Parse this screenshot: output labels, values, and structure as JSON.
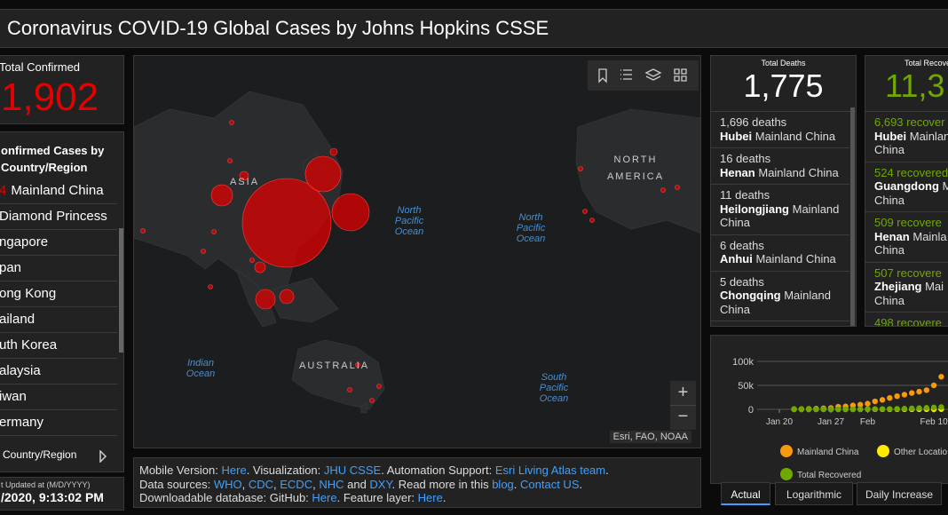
{
  "header": {
    "title": "Coronavirus COVID-19 Global Cases by Johns Hopkins CSSE"
  },
  "total_confirmed": {
    "label": "Total Confirmed",
    "value": "1,902"
  },
  "country_list": {
    "title_lines": [
      "onfirmed Cases by",
      "Country/Region"
    ],
    "items": [
      {
        "count": "4",
        "name": "Mainland China"
      },
      {
        "name": "Diamond Princess"
      },
      {
        "name": "ngapore"
      },
      {
        "name": "pan"
      },
      {
        "name": "ong Kong"
      },
      {
        "name": "ailand"
      },
      {
        "name": "uth Korea"
      },
      {
        "name": "alaysia"
      },
      {
        "name": "iwan"
      },
      {
        "name": "ermany"
      }
    ],
    "footer": "Country/Region"
  },
  "last_updated": {
    "label": "t Updated at (M/D/YYYY)",
    "value": "/2020, 9:13:02 PM"
  },
  "map": {
    "land_labels": [
      "ASIA",
      "NORTH AMERICA",
      "AUSTRALIA"
    ],
    "ocean_labels": [
      "North Pacific Ocean",
      "North Pacific Ocean",
      "Indian Ocean",
      "South Pacific Ocean"
    ],
    "zoom": [
      "+",
      "−"
    ],
    "attribution": "Esri, FAO, NOAA"
  },
  "info": {
    "lines": [
      [
        {
          "text": "Mobile Version: "
        },
        {
          "text": "Here",
          "link": true
        },
        {
          "text": ". Visualization: "
        },
        {
          "text": "JHU CSSE",
          "link": true
        },
        {
          "text": ". Automation Support: "
        },
        {
          "text": "Esri Living Atlas team",
          "link": true
        },
        {
          "text": "."
        }
      ],
      [
        {
          "text": "Data sources: "
        },
        {
          "text": "WHO",
          "link": true
        },
        {
          "text": ", "
        },
        {
          "text": "CDC",
          "link": true
        },
        {
          "text": ", "
        },
        {
          "text": "ECDC",
          "link": true
        },
        {
          "text": ", "
        },
        {
          "text": "NHC",
          "link": true
        },
        {
          "text": " and "
        },
        {
          "text": "DXY",
          "link": true
        },
        {
          "text": ". Read more in this "
        },
        {
          "text": "blog",
          "link": true
        },
        {
          "text": ". "
        },
        {
          "text": "Contact US",
          "link": true
        },
        {
          "text": "."
        }
      ],
      [
        {
          "text": "Downloadable database: GitHub: "
        },
        {
          "text": "Here",
          "link": true
        },
        {
          "text": ". Feature layer: "
        },
        {
          "text": "Here",
          "link": true
        },
        {
          "text": "."
        }
      ]
    ]
  },
  "deaths": {
    "title": "Total Deaths",
    "value": "1,775",
    "items": [
      {
        "count": "1,696 deaths",
        "place": "Hubei",
        "region": "Mainland China"
      },
      {
        "count": "16 deaths",
        "place": "Henan",
        "region": "Mainland China"
      },
      {
        "count": "11 deaths",
        "place": "Heilongjiang",
        "region": "Mainland China"
      },
      {
        "count": "6 deaths",
        "place": "Anhui",
        "region": "Mainland China"
      },
      {
        "count": "5 deaths",
        "place": "Chongqing",
        "region": "Mainland China"
      }
    ]
  },
  "recovered": {
    "title": "Total Recove",
    "value": "11,3",
    "items": [
      {
        "count": "6,693 recover",
        "place": "Hubei",
        "region": "Mainlan",
        "line3": "China"
      },
      {
        "count": "524 recovered",
        "place": "Guangdong",
        "region": "M",
        "line3": "China"
      },
      {
        "count": "509 recovere",
        "place": "Henan",
        "region": "Mainla",
        "line3": "China"
      },
      {
        "count": "507 recovere",
        "place": "Zhejiang",
        "region": "Mai",
        "line3": "China"
      },
      {
        "count": "498 recovere"
      }
    ]
  },
  "chart_data": {
    "type": "scatter",
    "categories": [
      "Jan 20",
      null,
      null,
      null,
      null,
      null,
      null,
      "Jan 27",
      null,
      null,
      null,
      null,
      "Feb",
      null,
      null,
      null,
      null,
      null,
      null,
      null,
      null,
      "Feb 10",
      null
    ],
    "series": [
      {
        "name": "Mainland China",
        "color": "#f89a0c",
        "values": [
          null,
          null,
          548,
          643,
          920,
          1406,
          2075,
          2877,
          5509,
          6087,
          8141,
          9802,
          11891,
          16630,
          19716,
          23707,
          27440,
          30587,
          34110,
          36814,
          40000,
          50000,
          68000
        ]
      },
      {
        "name": "Other Locatio",
        "color": "#ffea00",
        "values": [
          null,
          null,
          7,
          10,
          21,
          31,
          43,
          55,
          65,
          81,
          90,
          111,
          132,
          146,
          156,
          180,
          202,
          245,
          285,
          320,
          349,
          370,
          410
        ]
      },
      {
        "name": "Total Recovered",
        "color": "#70a800",
        "values": [
          null,
          null,
          28,
          30,
          36,
          39,
          49,
          58,
          101,
          120,
          135,
          214,
          275,
          463,
          614,
          843,
          1115,
          1476,
          1998,
          2595,
          3218,
          3918,
          4636
        ]
      }
    ],
    "ylim": [
      0,
      100000
    ],
    "yticks": [
      0,
      {
        "value": 50000,
        "label": "50k"
      },
      {
        "value": 100000,
        "label": "100k"
      }
    ],
    "grid": true,
    "tabs": [
      "Actual",
      "Logarithmic",
      "Daily Increase"
    ]
  }
}
